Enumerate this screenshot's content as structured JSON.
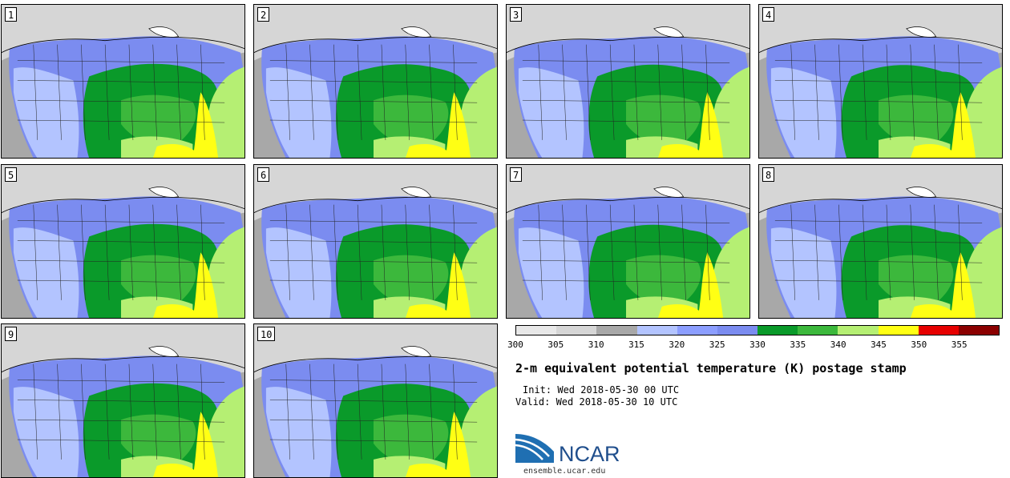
{
  "title": "2-m equivalent potential temperature (K) postage stamp",
  "init": "Init: Wed 2018-05-30 00 UTC",
  "valid": "Valid: Wed 2018-05-30 10 UTC",
  "logo": {
    "name": "NCAR",
    "site": "ensemble.ucar.edu"
  },
  "members": [
    "1",
    "2",
    "3",
    "4",
    "5",
    "6",
    "7",
    "8",
    "9",
    "10"
  ],
  "colorbar": {
    "ticks": [
      "300",
      "305",
      "310",
      "315",
      "320",
      "325",
      "330",
      "335",
      "340",
      "345",
      "350",
      "355"
    ],
    "colors": [
      "#e8e8e8",
      "#d6d6d6",
      "#a8a8a8",
      "#b3c4ff",
      "#8c9eff",
      "#7b8cf0",
      "#0a9a2a",
      "#3cb83c",
      "#b5ef73",
      "#ffff14",
      "#e60000",
      "#8b0000"
    ]
  },
  "map_colors": {
    "cold_gray": "#a8a8a8",
    "light_gray": "#d6d6d6",
    "light_blue": "#b3c4ff",
    "blue": "#7b8cf0",
    "dark_green": "#0a9a2a",
    "green": "#3cb83c",
    "light_green": "#b5ef73",
    "yellow": "#ffff14",
    "ocean": "#b3c4ff"
  }
}
